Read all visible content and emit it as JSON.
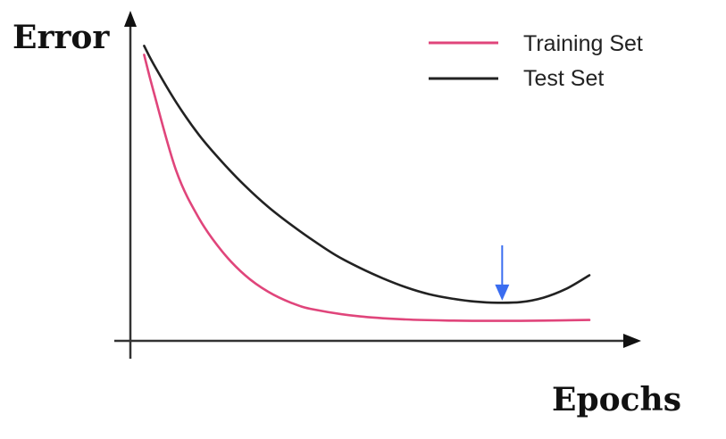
{
  "chart_data": {
    "type": "line",
    "title": "",
    "xlabel": "Epochs",
    "ylabel": "Error",
    "xlim": [
      0,
      10
    ],
    "ylim": [
      0,
      10
    ],
    "grid": false,
    "legend": {
      "placement": "top-right",
      "entries": [
        "Training Set",
        "Test Set"
      ]
    },
    "series": [
      {
        "name": "Training Set",
        "color": "#e0457b",
        "x": [
          0.3,
          0.5,
          1,
          1.5,
          2,
          2.5,
          3,
          3.5,
          4,
          5,
          6,
          7,
          8,
          9,
          10
        ],
        "y": [
          9.3,
          8.1,
          5.4,
          3.8,
          2.7,
          1.9,
          1.35,
          0.98,
          0.75,
          0.52,
          0.42,
          0.38,
          0.37,
          0.38,
          0.4
        ]
      },
      {
        "name": "Test Set",
        "color": "#222222",
        "x": [
          0.3,
          0.5,
          1,
          1.5,
          2,
          2.5,
          3,
          3.5,
          4,
          4.5,
          5,
          5.5,
          6,
          6.5,
          7,
          7.5,
          8,
          8.5,
          9,
          9.5,
          10
        ],
        "y": [
          9.6,
          9.0,
          7.7,
          6.6,
          5.7,
          4.9,
          4.2,
          3.6,
          3.05,
          2.55,
          2.15,
          1.8,
          1.5,
          1.27,
          1.12,
          1.02,
          0.98,
          1.0,
          1.15,
          1.45,
          1.9
        ]
      }
    ],
    "annotations": [
      {
        "type": "arrow",
        "color": "#3a6df0",
        "x": 8.1,
        "y": 1.05,
        "direction": "down"
      }
    ]
  }
}
